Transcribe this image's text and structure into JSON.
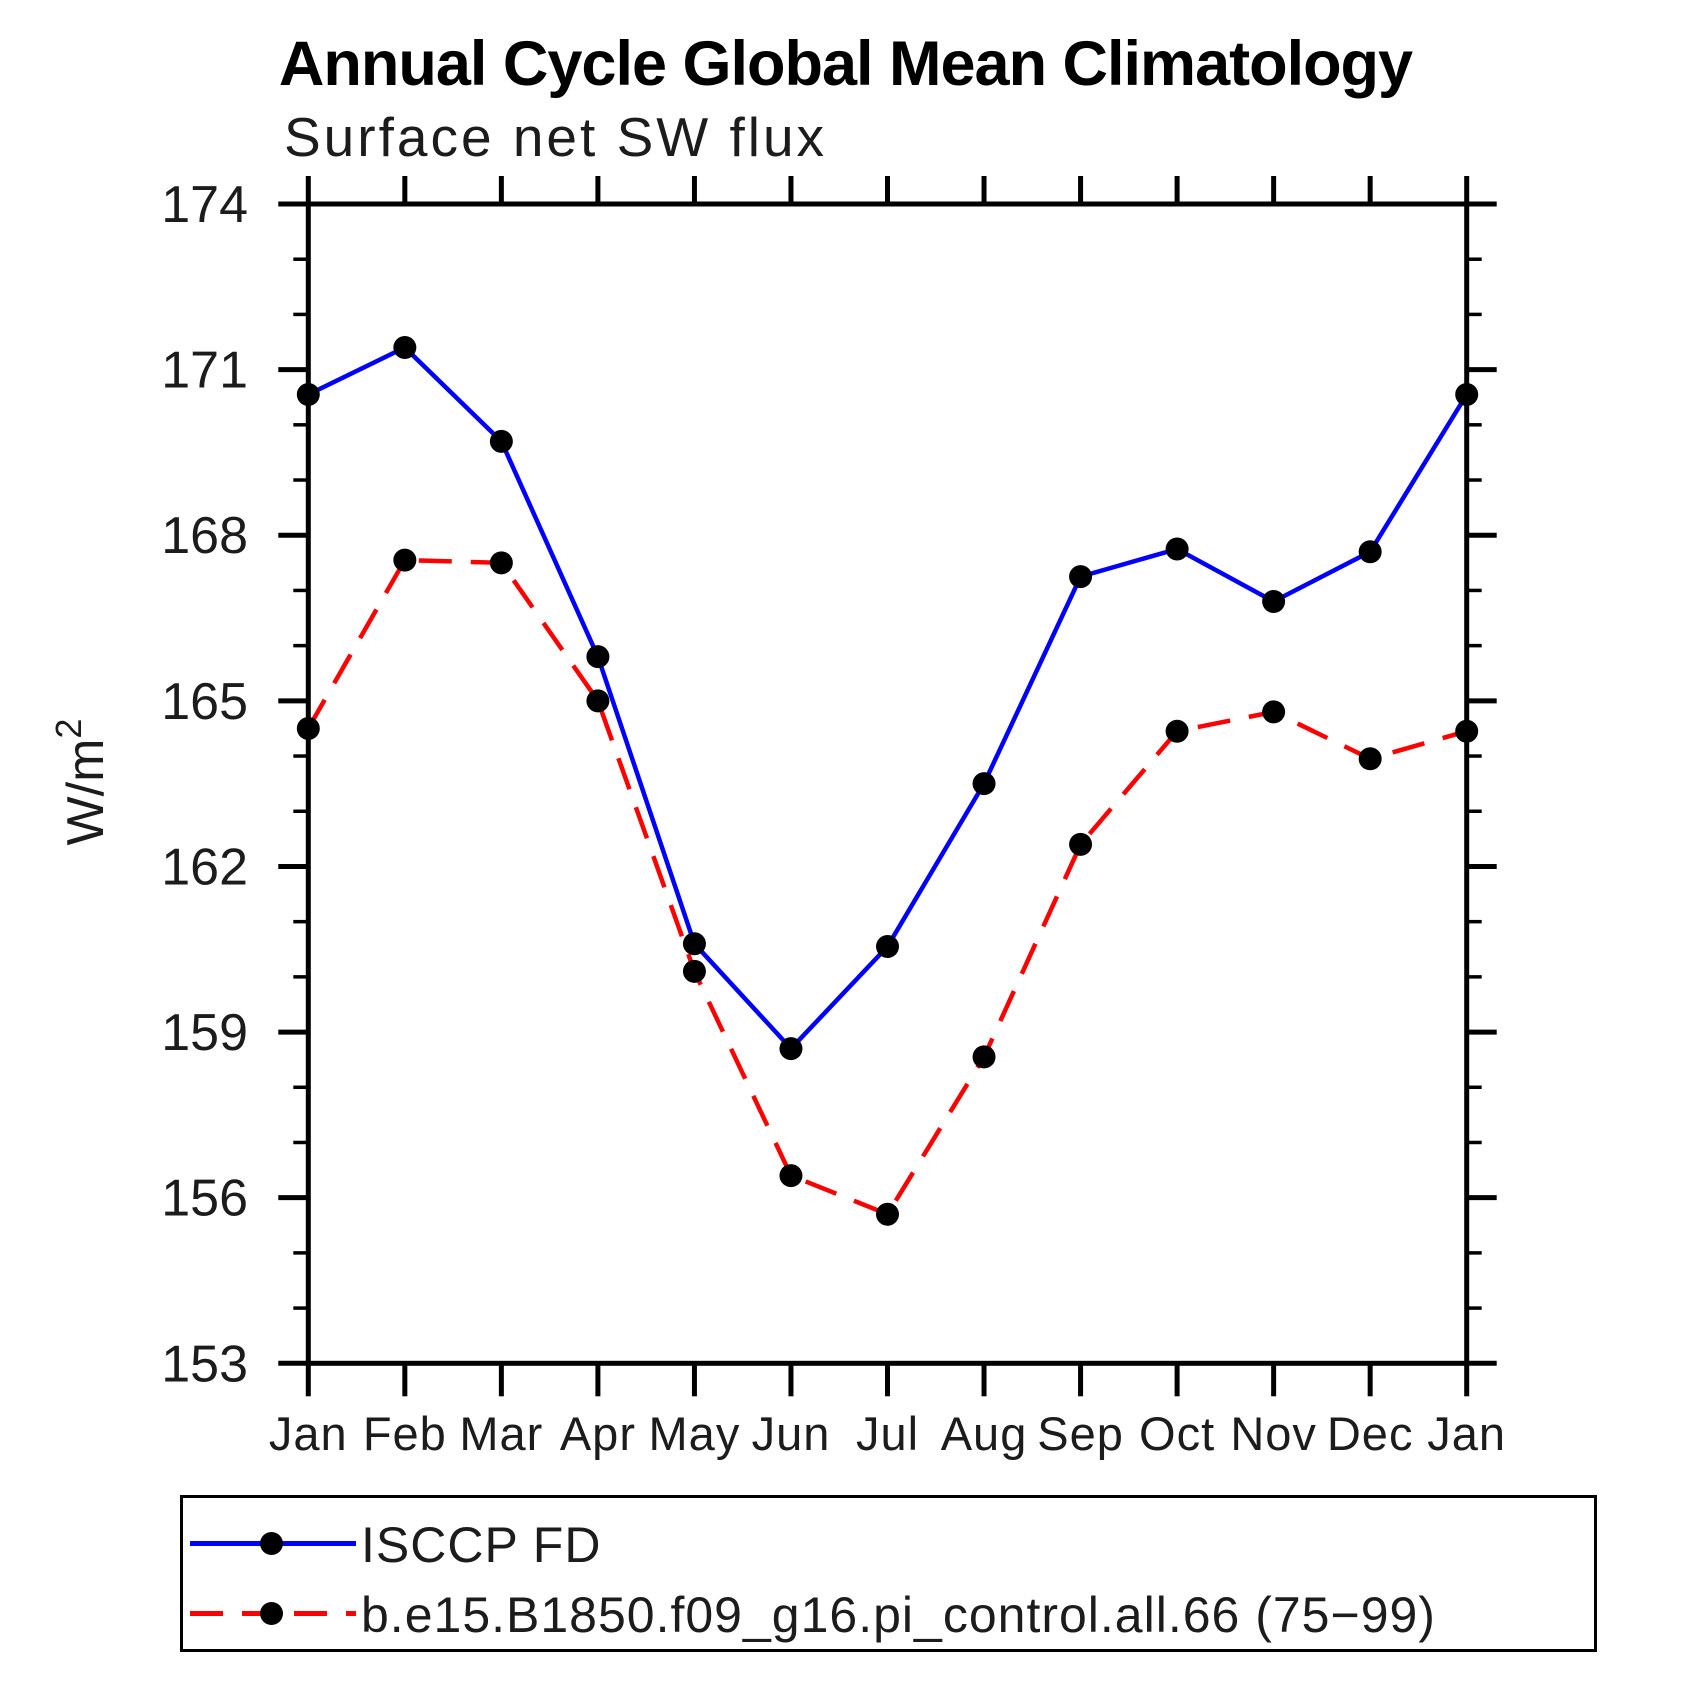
{
  "title": "Annual Cycle Global Mean Climatology",
  "subtitle": "Surface net SW flux",
  "y_axis_label": {
    "base": "W/m",
    "exponent": "2"
  },
  "chart_data": {
    "type": "line",
    "categories": [
      "Jan",
      "Feb",
      "Mar",
      "Apr",
      "May",
      "Jun",
      "Jul",
      "Aug",
      "Sep",
      "Oct",
      "Nov",
      "Dec",
      "Jan"
    ],
    "series": [
      {
        "name": "ISCCP FD",
        "color": "#0000ff",
        "line_style": "solid",
        "marker": "filled-circle",
        "marker_color": "#000000",
        "values": [
          170.55,
          171.4,
          169.7,
          165.8,
          160.6,
          158.7,
          160.55,
          163.5,
          167.25,
          167.75,
          166.8,
          167.7,
          170.55
        ]
      },
      {
        "name": "b.e15.B1850.f09_g16.pi_control.all.66 (75−99)",
        "color": "#ff0000",
        "line_style": "dashed",
        "marker": "filled-circle",
        "marker_color": "#000000",
        "values": [
          164.5,
          167.55,
          167.5,
          165.0,
          160.1,
          156.4,
          155.7,
          158.55,
          162.4,
          164.45,
          164.8,
          163.95,
          164.45
        ]
      }
    ],
    "ylabel": "W/m²",
    "ylim": [
      153,
      174
    ],
    "yticks": [
      153,
      156,
      159,
      162,
      165,
      168,
      171,
      174
    ],
    "y_minor_tick_step": 1,
    "xlabel": "",
    "grid": false,
    "legend_position": "bottom-box"
  }
}
